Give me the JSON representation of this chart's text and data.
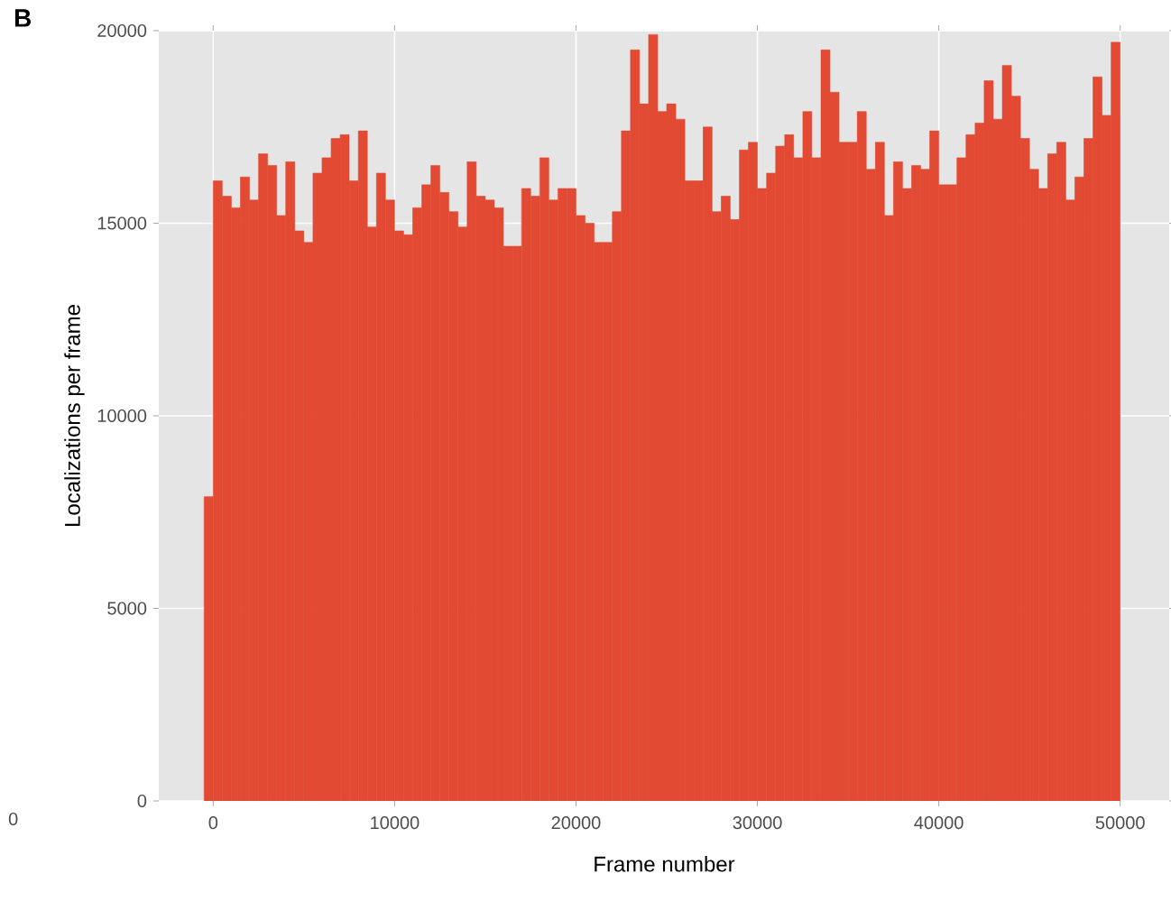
{
  "chart_data": {
    "type": "histogram",
    "xlabel": "Frame number",
    "ylabel": "Localizations per frame",
    "annotations": [
      "B",
      "0"
    ],
    "color": "#e24a33",
    "bins": [
      -500,
      0,
      500,
      1000,
      1500,
      2000,
      2500,
      3000,
      3500,
      4000,
      4500,
      5000,
      5500,
      6000,
      6500,
      7000,
      7500,
      8000,
      8500,
      9000,
      9500,
      10000,
      10500,
      11000,
      11500,
      12000,
      12500,
      13000,
      13500,
      14000,
      14500,
      15000,
      15500,
      16000,
      16500,
      17000,
      17500,
      18000,
      18500,
      19000,
      19500,
      20000,
      20500,
      21000,
      21500,
      22000,
      22500,
      23000,
      23500,
      24000,
      24500,
      25000,
      25500,
      26000,
      26500,
      27000,
      27500,
      28000,
      28500,
      29000,
      29500,
      30000,
      30500,
      31000,
      31500,
      32000,
      32500,
      33000,
      33500,
      34000,
      34500,
      35000,
      35500,
      36000,
      36500,
      37000,
      37500,
      38000,
      38500,
      39000,
      39500,
      40000,
      40500,
      41000,
      41500,
      42000,
      42500,
      43000,
      43500,
      44000,
      44500,
      45000,
      45500,
      46000,
      46500,
      47000,
      47500,
      48000,
      48500,
      49000,
      49500,
      50000
    ],
    "values": [
      7900,
      16100,
      15700,
      15400,
      16200,
      15600,
      16800,
      16500,
      15200,
      16600,
      14800,
      14500,
      16300,
      16700,
      17200,
      17300,
      16100,
      17400,
      14900,
      16300,
      15600,
      14800,
      14700,
      15400,
      16000,
      16500,
      15800,
      15300,
      14900,
      16600,
      15700,
      15600,
      15400,
      14400,
      14400,
      15900,
      15700,
      16700,
      15600,
      15900,
      15900,
      15200,
      15000,
      14500,
      14500,
      15300,
      17400,
      19500,
      18100,
      19900,
      17900,
      18100,
      17700,
      16100,
      16100,
      17500,
      15300,
      15700,
      15100,
      16900,
      17100,
      15900,
      16300,
      17000,
      17300,
      16700,
      17900,
      16700,
      19500,
      18400,
      17100,
      17100,
      17900,
      16400,
      17100,
      15200,
      16600,
      15900,
      16500,
      16400,
      17400,
      16000,
      16000,
      16700,
      17300,
      17600,
      18700,
      17700,
      19100,
      18300,
      17200,
      16400,
      15900,
      16800,
      17100,
      15600,
      16200,
      17200,
      18800,
      17800,
      19700
    ],
    "xlim": [
      -3000,
      52700
    ],
    "ylim": [
      0,
      20000
    ],
    "xticks": [
      0,
      10000,
      20000,
      30000,
      40000,
      50000
    ],
    "yticks": [
      0,
      5000,
      10000,
      15000,
      20000
    ],
    "grid": true
  }
}
